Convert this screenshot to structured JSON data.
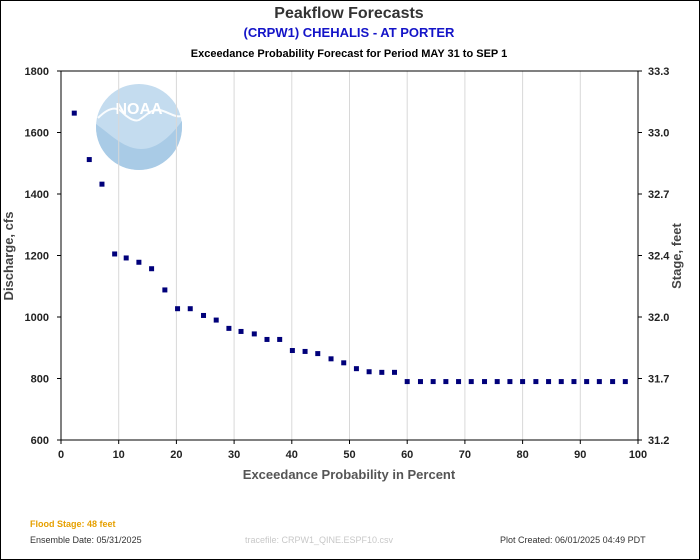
{
  "header": {
    "title": "Peakflow Forecasts",
    "station": "(CRPW1) CHEHALIS - AT PORTER",
    "subtitle": "Exceedance Probability Forecast for Period MAY 31 to SEP 1"
  },
  "footer": {
    "flood_stage": "Flood Stage: 48 feet",
    "ensemble_date": "Ensemble Date: 05/31/2025",
    "tracefile": "tracefile: CRPW1_QINE.ESPF10.csv",
    "plot_created": "Plot Created: 06/01/2025 04:49 PDT"
  },
  "logo": {
    "text": "NOAA"
  },
  "colors": {
    "station": "#1414c8",
    "flood_stage": "#e6a000",
    "marker": "#00007a",
    "grid": "#d8d8d8",
    "logo_light": "#c4dcef",
    "logo_dark": "#a9cbe6"
  },
  "chart_data": {
    "type": "scatter",
    "title": "Peakflow Forecasts",
    "xlabel": "Exceedance Probability in Percent",
    "ylabel": "Discharge, cfs",
    "y2label": "Stage, feet",
    "xlim": [
      0,
      100
    ],
    "ylim": [
      600,
      1800
    ],
    "x_ticks": [
      0,
      10,
      20,
      30,
      40,
      50,
      60,
      70,
      80,
      90,
      100
    ],
    "y_ticks": [
      600,
      800,
      1000,
      1200,
      1400,
      1600,
      1800
    ],
    "y2_ticks": [
      "31.2",
      "31.7",
      "32.0",
      "32.4",
      "32.7",
      "33.0",
      "33.3"
    ],
    "grid": "vertical",
    "series": [
      {
        "x": [
          2.3,
          4.9,
          7.1,
          9.3,
          11.3,
          13.5,
          15.7,
          18.0,
          20.2,
          22.4,
          24.7,
          26.9,
          29.1,
          31.2,
          33.5,
          35.7,
          37.9,
          40.1,
          42.3,
          44.5,
          46.8,
          49.0,
          51.2,
          53.4,
          55.6,
          57.8,
          60.0,
          62.3,
          64.5,
          66.7,
          68.9,
          71.1,
          73.4,
          75.6,
          77.8,
          80.0,
          82.3,
          84.5,
          86.7,
          88.9,
          91.1,
          93.3,
          95.6,
          97.8
        ],
        "values": [
          1663,
          1512,
          1432,
          1205,
          1192,
          1178,
          1157,
          1088,
          1027,
          1027,
          1005,
          990,
          963,
          953,
          945,
          927,
          927,
          891,
          888,
          881,
          864,
          851,
          832,
          822,
          820,
          820,
          790,
          790,
          790,
          790,
          790,
          790,
          790,
          790,
          790,
          790,
          790,
          790,
          790,
          790,
          790,
          790,
          790,
          790
        ]
      }
    ]
  }
}
